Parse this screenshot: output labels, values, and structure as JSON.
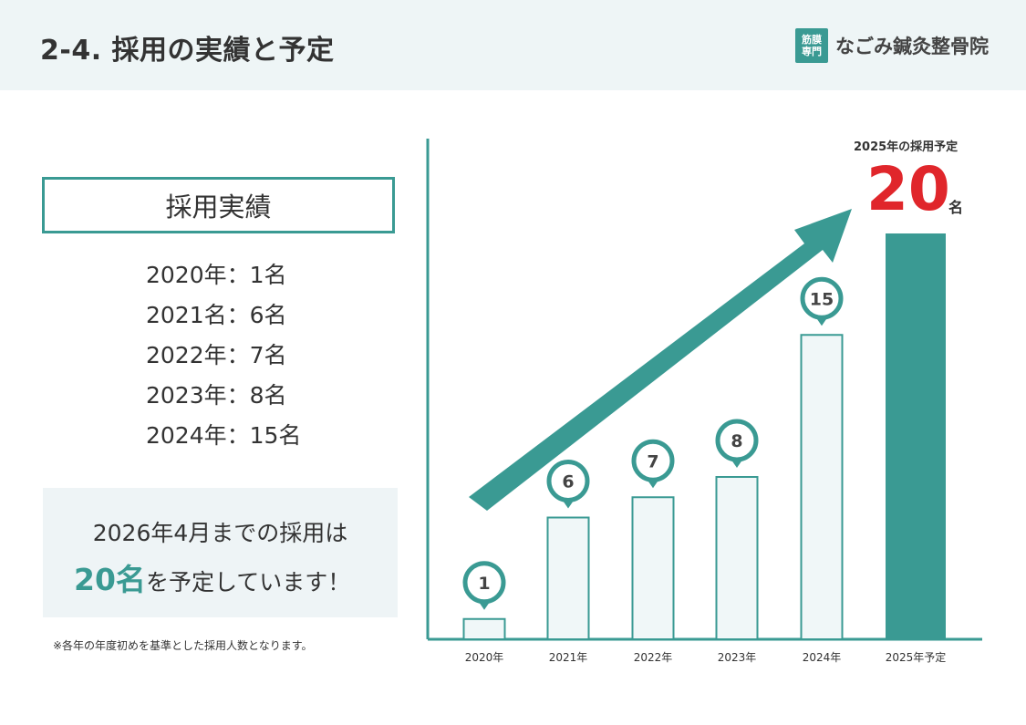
{
  "header": {
    "title": "2-4. 採用の実績と予定",
    "logo_badge_line1": "筋膜",
    "logo_badge_line2": "専門",
    "logo_name": "なごみ鍼灸整骨院"
  },
  "results": {
    "heading": "採用実績",
    "lines": [
      "2020年：1名",
      "2021名：6名",
      "2022年：7名",
      "2023年：8名",
      "2024年：15名"
    ]
  },
  "plan": {
    "line1": "2026年4月までの採用は",
    "line2_highlight": "20名",
    "line2_rest": "を予定しています！"
  },
  "note": "※各年の年度初めを基準とした採用人数となります。",
  "forecast": {
    "label": "2025年の採用予定",
    "value": "20",
    "unit": "名"
  },
  "colors": {
    "teal": "#3a9a93",
    "bar_fill": "#f0f7f8",
    "red": "#e0262b"
  },
  "chart_data": {
    "type": "bar",
    "categories": [
      "2020年",
      "2021年",
      "2022年",
      "2023年",
      "2024年",
      "2025年予定"
    ],
    "values": [
      1,
      6,
      7,
      8,
      15,
      20
    ],
    "data_labels": [
      "1",
      "6",
      "7",
      "8",
      "15",
      null
    ],
    "highlight_index": 5,
    "title": "",
    "xlabel": "",
    "ylabel": "",
    "ylim": [
      0,
      20
    ],
    "trend_arrow": true
  }
}
